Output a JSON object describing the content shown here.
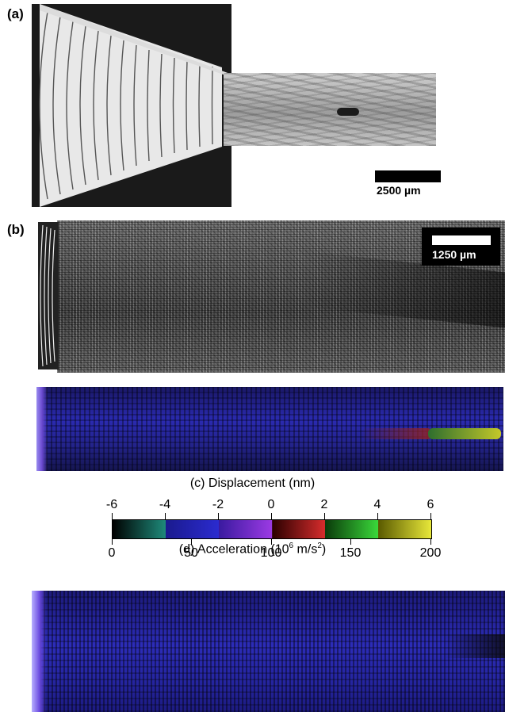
{
  "panels": {
    "a": {
      "label": "(a)",
      "scale_bar": "2500 µm"
    },
    "b": {
      "label": "(b)",
      "scale_bar": "1250 µm"
    }
  },
  "colorbar": {
    "title_c": "(c) Displacement (nm)",
    "title_d_prefix": "(d) Acceleration (10",
    "title_d_exp": "6",
    "title_d_mid": " m/s",
    "title_d_exp2": "2",
    "title_d_suffix": ")",
    "top_ticks": [
      "-6",
      "-4",
      "-2",
      "0",
      "2",
      "4",
      "6"
    ],
    "bottom_ticks": [
      "0",
      "50",
      "100",
      "150",
      "200"
    ],
    "colors": [
      "#000000",
      "#2b2bcf",
      "#9b3ae3",
      "#d62c2c",
      "#3ad83a",
      "#e8e83a"
    ]
  }
}
